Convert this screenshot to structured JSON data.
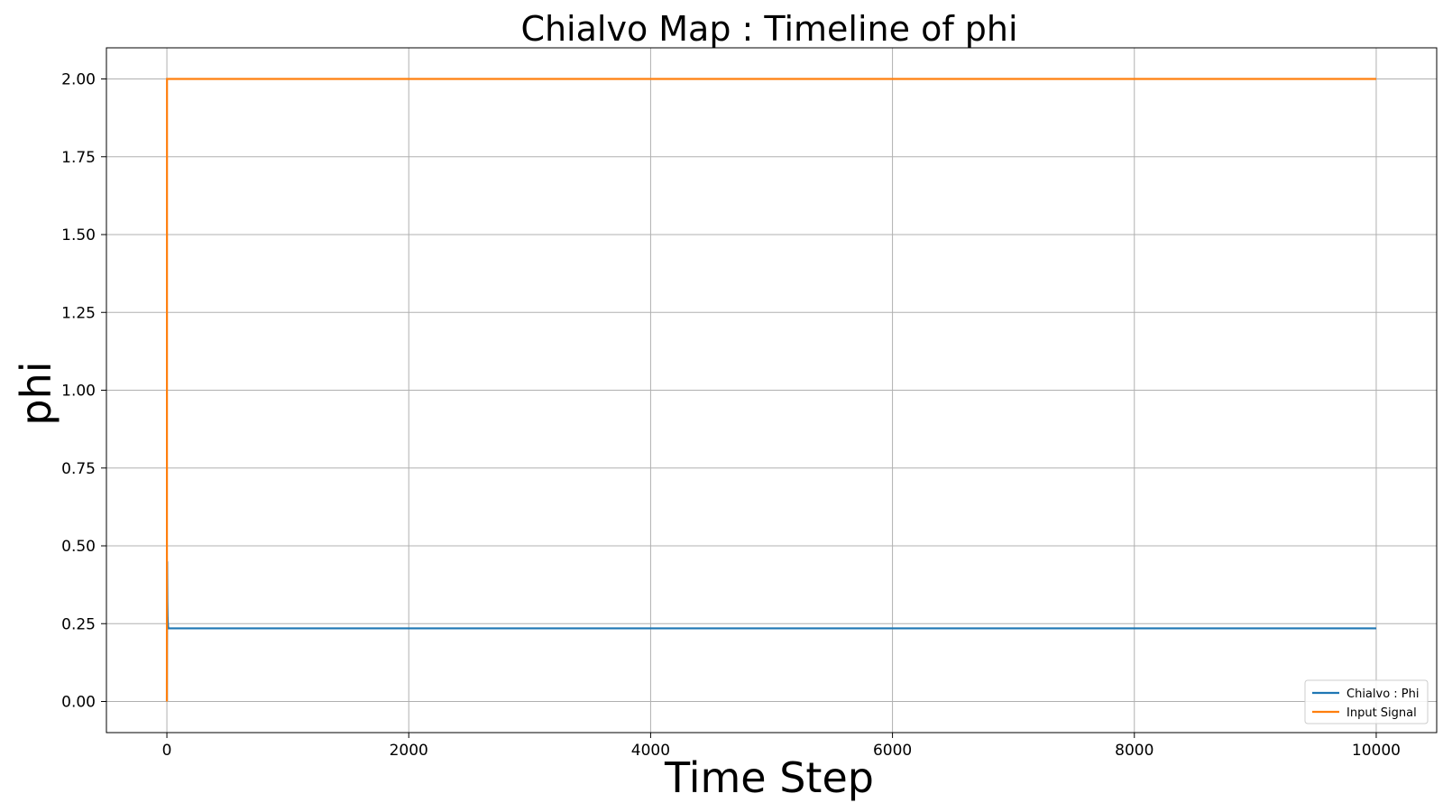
{
  "chart_data": {
    "type": "line",
    "title": "Chialvo Map : Timeline of phi",
    "xlabel": "Time Step",
    "ylabel": "phi",
    "xlim": [
      -500,
      10500
    ],
    "ylim": [
      -0.1,
      2.1
    ],
    "xticks": [
      0,
      2000,
      4000,
      6000,
      8000,
      10000
    ],
    "xtick_labels": [
      "0",
      "2000",
      "4000",
      "6000",
      "8000",
      "10000"
    ],
    "yticks": [
      0.0,
      0.25,
      0.5,
      0.75,
      1.0,
      1.25,
      1.5,
      1.75,
      2.0
    ],
    "ytick_labels": [
      "0.00",
      "0.25",
      "0.50",
      "0.75",
      "1.00",
      "1.25",
      "1.50",
      "1.75",
      "2.00"
    ],
    "grid": true,
    "legend_position": "bottom-right",
    "series": [
      {
        "name": "Chialvo : Phi",
        "color": "#1f77b4",
        "x": [
          0,
          2,
          4,
          6,
          8,
          10,
          12,
          10000
        ],
        "y": [
          0.0,
          0.45,
          0.32,
          0.27,
          0.25,
          0.24,
          0.235,
          0.235
        ]
      },
      {
        "name": "Input Signal",
        "color": "#ff7f0e",
        "x": [
          0,
          1,
          10000
        ],
        "y": [
          0.0,
          2.0,
          2.0
        ]
      }
    ]
  }
}
